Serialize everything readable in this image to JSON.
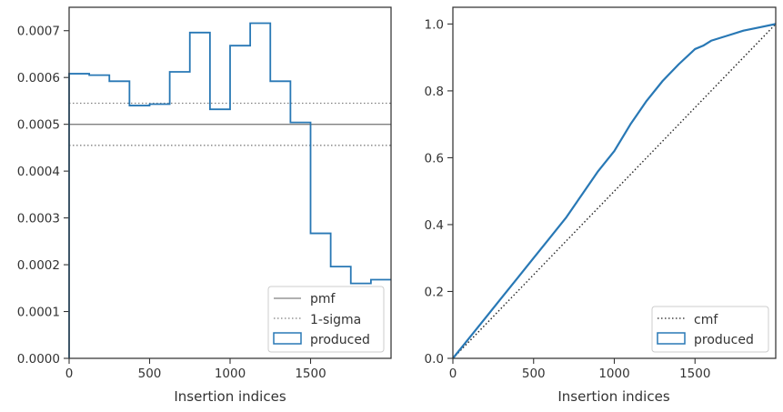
{
  "chart_data": [
    {
      "type": "histogram-step",
      "xlabel": "Insertion indices",
      "xlim": [
        0,
        2000
      ],
      "ylim": [
        0,
        0.00075
      ],
      "xticks": [
        0,
        500,
        1000,
        1500
      ],
      "yticks": [
        0.0,
        0.0001,
        0.0002,
        0.0003,
        0.0004,
        0.0005,
        0.0006,
        0.0007
      ],
      "ytick_labels": [
        "0.0000",
        "0.0001",
        "0.0002",
        "0.0003",
        "0.0004",
        "0.0005",
        "0.0006",
        "0.0007"
      ],
      "xtick_labels": [
        "0",
        "500",
        "1000",
        "1500"
      ],
      "bin_edges": [
        0,
        125,
        250,
        375,
        500,
        625,
        750,
        875,
        1000,
        1125,
        1250,
        1375,
        1500,
        1625,
        1750,
        1875,
        2000
      ],
      "produced": [
        0.000608,
        0.000605,
        0.000592,
        0.00054,
        0.000543,
        0.000612,
        0.000696,
        0.000532,
        0.000668,
        0.000716,
        0.000592,
        0.000504,
        0.000267,
        0.000196,
        0.00016,
        0.000168
      ],
      "pmf": 0.0005,
      "sigma_upper": 0.000545,
      "sigma_lower": 0.000455,
      "legend": [
        "pmf",
        "1-sigma",
        "produced"
      ],
      "legend_position": "lower-right",
      "colors": {
        "produced": "#2878b5",
        "pmf": "#808080",
        "sigma": "#808080"
      }
    },
    {
      "type": "line",
      "xlabel": "Insertion indices",
      "xlim": [
        0,
        2000
      ],
      "ylim": [
        0,
        1.05
      ],
      "xticks": [
        0,
        500,
        1000,
        1500
      ],
      "yticks": [
        0.0,
        0.2,
        0.4,
        0.6,
        0.8,
        1.0
      ],
      "ytick_labels": [
        "0.0",
        "0.2",
        "0.4",
        "0.6",
        "0.8",
        "1.0"
      ],
      "xtick_labels": [
        "0",
        "500",
        "1000",
        "1500"
      ],
      "produced": {
        "x": [
          0,
          100,
          200,
          300,
          400,
          500,
          600,
          700,
          800,
          900,
          1000,
          1100,
          1200,
          1300,
          1400,
          1500,
          1550,
          1600,
          1700,
          1800,
          1900,
          2000
        ],
        "y": [
          0.0,
          0.06,
          0.12,
          0.18,
          0.24,
          0.3,
          0.36,
          0.42,
          0.49,
          0.56,
          0.62,
          0.7,
          0.77,
          0.83,
          0.88,
          0.925,
          0.935,
          0.95,
          0.965,
          0.98,
          0.99,
          1.0
        ]
      },
      "cmf": {
        "x": [
          0,
          2000
        ],
        "y": [
          0.0,
          1.0
        ]
      },
      "legend": [
        "cmf",
        "produced"
      ],
      "legend_position": "lower-right",
      "colors": {
        "produced": "#2878b5",
        "cmf": "#222222"
      }
    }
  ]
}
